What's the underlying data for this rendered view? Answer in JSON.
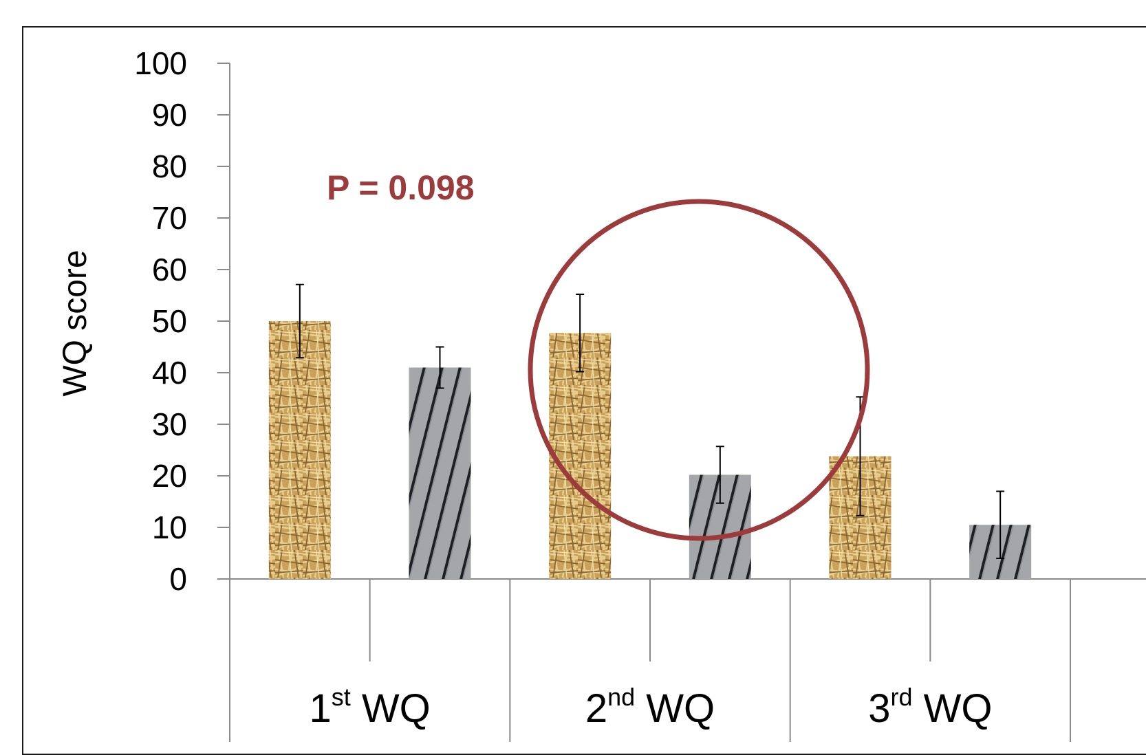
{
  "chart_data": {
    "type": "bar",
    "ylabel": "WQ score",
    "ylim": [
      0,
      100
    ],
    "yticks": [
      0,
      10,
      20,
      30,
      40,
      50,
      60,
      70,
      80,
      90,
      100
    ],
    "groups": [
      {
        "ordinal": "1",
        "suffix": "st",
        "name": "WQ"
      },
      {
        "ordinal": "2",
        "suffix": "nd",
        "name": "WQ"
      },
      {
        "ordinal": "3",
        "suffix": "rd",
        "name": "WQ"
      }
    ],
    "series": [
      {
        "fill": "straw",
        "values": [
          50,
          47.7,
          23.8
        ],
        "errors": [
          7.1,
          7.5,
          11.5
        ]
      },
      {
        "fill": "slatted floor",
        "values": [
          41,
          20.2,
          10.5
        ],
        "errors": [
          4.0,
          5.5,
          6.5
        ]
      }
    ],
    "annotation": {
      "text": "P = 0.098",
      "color": "#9b3b3b"
    },
    "highlight": {
      "shape": "circle",
      "color": "#9b3b3b",
      "group_index": 1
    },
    "grid": false,
    "legend": "none"
  }
}
